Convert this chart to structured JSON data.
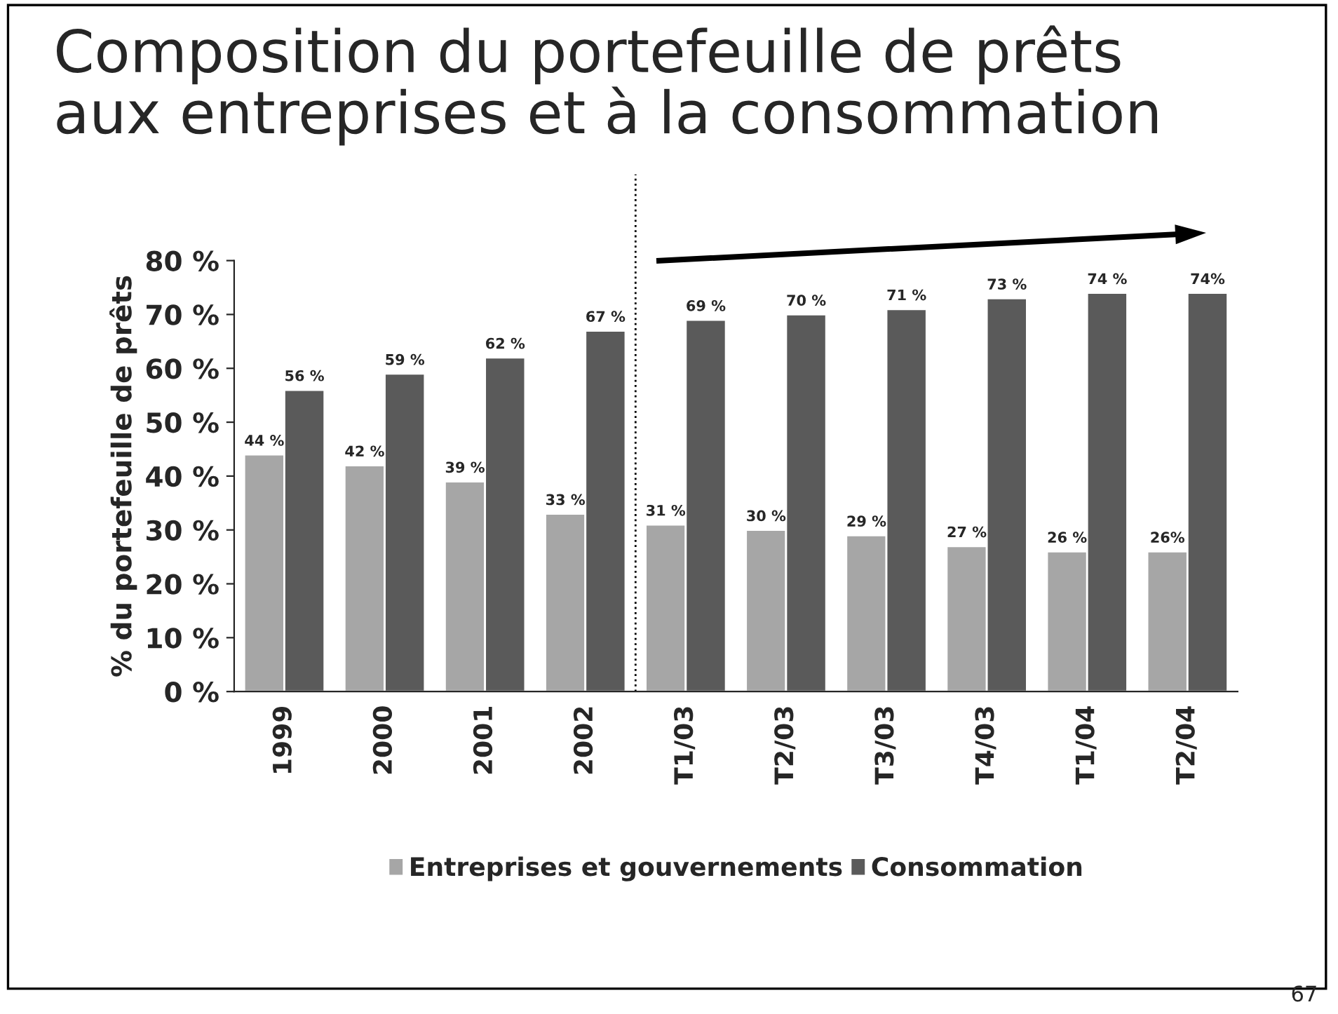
{
  "chart_data": {
    "type": "bar",
    "title": "Composition du portefeuille de prêts\naux entreprises et à la consommation",
    "ylabel": "% du portefeuille de prêts",
    "categories": [
      "1999",
      "2000",
      "2001",
      "2002",
      "T1/03",
      "T2/03",
      "T3/03",
      "T4/03",
      "T1/04",
      "T2/04"
    ],
    "series": [
      {
        "name": "Entreprises et gouvernements",
        "color": "#a6a6a6",
        "values": [
          44,
          42,
          39,
          33,
          31,
          30,
          29,
          27,
          26,
          26
        ],
        "value_labels": [
          "44 %",
          "42 %",
          "39 %",
          "33 %",
          "31 %",
          "30 %",
          "29 %",
          "27 %",
          "26 %",
          "26%"
        ]
      },
      {
        "name": "Consommation",
        "color": "#5a5a5a",
        "values": [
          56,
          59,
          62,
          67,
          69,
          70,
          71,
          73,
          74,
          74
        ],
        "value_labels": [
          "56 %",
          "59 %",
          "62 %",
          "67 %",
          "69 %",
          "70 %",
          "71 %",
          "73 %",
          "74 %",
          "74%"
        ]
      }
    ],
    "ylim": [
      0,
      80
    ],
    "yticks": [
      {
        "value": 0,
        "label": "0 %"
      },
      {
        "value": 10,
        "label": "10 %"
      },
      {
        "value": 20,
        "label": "20 %"
      },
      {
        "value": 30,
        "label": "30 %"
      },
      {
        "value": 40,
        "label": "40 %"
      },
      {
        "value": 50,
        "label": "50 %"
      },
      {
        "value": 60,
        "label": "60 %"
      },
      {
        "value": 70,
        "label": "70 %"
      },
      {
        "value": 80,
        "label": "80 %"
      }
    ],
    "annotations": [
      "67"
    ],
    "legend": "bottom",
    "grid": false
  }
}
